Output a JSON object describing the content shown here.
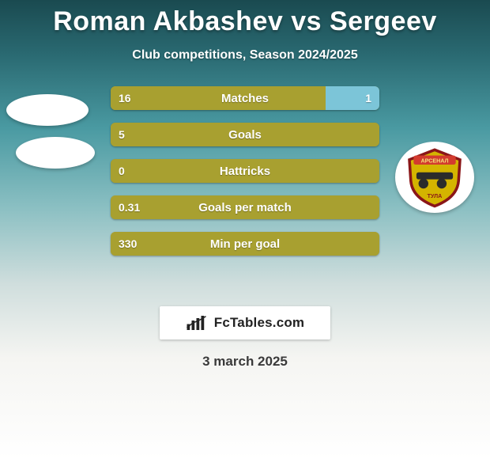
{
  "title": "Roman Akbashev vs Sergeev",
  "subtitle": "Club competitions, Season 2024/2025",
  "date": "3 march 2025",
  "brand": {
    "text": "FcTables.com"
  },
  "colors": {
    "left_bar": "#a8a030",
    "right_bar": "#7cc5d8",
    "row_bg": "#a8a030",
    "text": "#ffffff"
  },
  "rows": [
    {
      "label": "Matches",
      "left_value": "16",
      "right_value": "1",
      "left_pct": 80,
      "right_pct": 20,
      "show_right": true
    },
    {
      "label": "Goals",
      "left_value": "5",
      "right_value": "",
      "left_pct": 100,
      "right_pct": 0,
      "show_right": false
    },
    {
      "label": "Hattricks",
      "left_value": "0",
      "right_value": "",
      "left_pct": 100,
      "right_pct": 0,
      "show_right": false
    },
    {
      "label": "Goals per match",
      "left_value": "0.31",
      "right_value": "",
      "left_pct": 100,
      "right_pct": 0,
      "show_right": false
    },
    {
      "label": "Min per goal",
      "left_value": "330",
      "right_value": "",
      "left_pct": 100,
      "right_pct": 0,
      "show_right": false
    }
  ],
  "right_badge": {
    "top_text": "АРСЕНАЛ",
    "bottom_text": "ТУЛА",
    "shield_fill": "#d4b400",
    "shield_stroke": "#8a1618",
    "cannon_fill": "#2b2b2b",
    "banner_fill": "#d33b2f"
  }
}
